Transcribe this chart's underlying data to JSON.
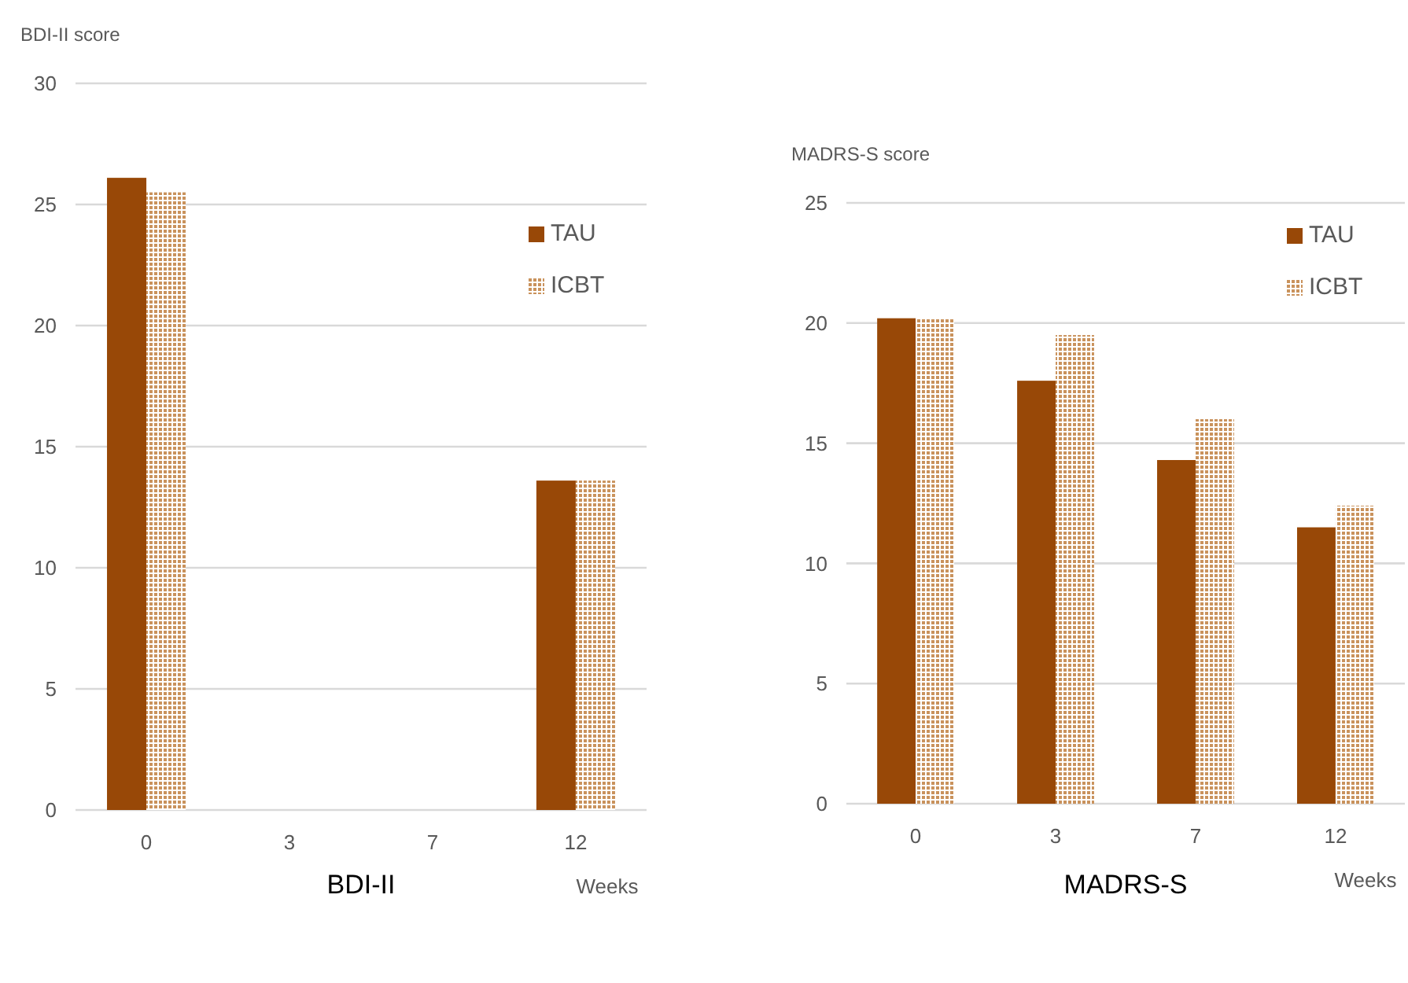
{
  "chart_data": [
    {
      "type": "bar",
      "title": "BDI-II",
      "xlabel": "Weeks",
      "ylabel": "BDI-II score",
      "categories": [
        "0",
        "3",
        "7",
        "12"
      ],
      "series": [
        {
          "name": "TAU",
          "color": "#984807",
          "values": [
            26.1,
            null,
            null,
            13.6
          ]
        },
        {
          "name": "ICBT",
          "color": "#c9925c",
          "values": [
            25.5,
            null,
            null,
            13.6
          ]
        }
      ],
      "ylim": [
        0,
        30
      ],
      "yticks": [
        0,
        5,
        10,
        15,
        20,
        25,
        30
      ],
      "grid": "y",
      "legend": "top right"
    },
    {
      "type": "bar",
      "title": "MADRS-S",
      "xlabel": "Weeks",
      "ylabel": "MADRS-S score",
      "categories": [
        "0",
        "3",
        "7",
        "12"
      ],
      "series": [
        {
          "name": "TAU",
          "color": "#984807",
          "values": [
            20.2,
            17.6,
            14.3,
            11.5
          ]
        },
        {
          "name": "ICBT",
          "color": "#c9925c",
          "values": [
            20.2,
            19.5,
            16.0,
            12.4
          ]
        }
      ],
      "ylim": [
        0,
        25
      ],
      "yticks": [
        0,
        5,
        10,
        15,
        20,
        25
      ],
      "grid": "y",
      "legend": "top right"
    }
  ]
}
